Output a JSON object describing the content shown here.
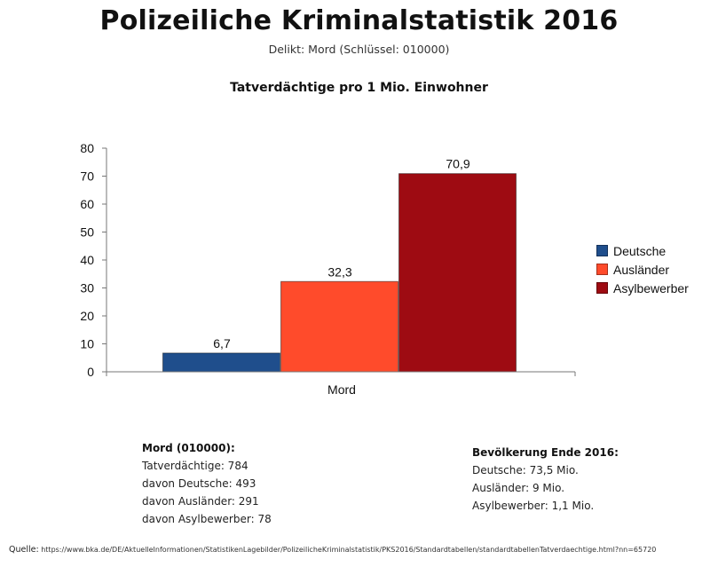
{
  "header": {
    "title": "Polizeiliche Kriminalstatistik 2016",
    "subtitle": "Delikt: Mord (Schlüssel: 010000)"
  },
  "chart_data": {
    "type": "bar",
    "title": "Tatverdächtige pro 1 Mio. Einwohner",
    "categories": [
      "Mord"
    ],
    "series": [
      {
        "name": "Deutsche",
        "values": [
          6.7
        ],
        "label": "6,7",
        "color": "#1f4e8c"
      },
      {
        "name": "Ausländer",
        "values": [
          32.3
        ],
        "label": "32,3",
        "color": "#ff4b2b"
      },
      {
        "name": "Asylbewerber",
        "values": [
          70.9
        ],
        "label": "70,9",
        "color": "#9e0b12"
      }
    ],
    "yticks": [
      "0",
      "10",
      "20",
      "30",
      "40",
      "50",
      "60",
      "70",
      "80"
    ],
    "ylim": [
      0,
      80
    ],
    "xlabel": "",
    "ylabel": "",
    "grid": false,
    "legend": "right"
  },
  "stats_left": {
    "heading": "Mord (010000):",
    "lines": [
      "Tatverdächtige: 784",
      "davon Deutsche: 493",
      "davon Ausländer: 291",
      "davon Asylbewerber: 78"
    ]
  },
  "stats_right": {
    "heading": "Bevölkerung Ende 2016:",
    "lines": [
      "Deutsche: 73,5 Mio.",
      "Ausländer: 9 Mio.",
      "Asylbewerber: 1,1 Mio."
    ]
  },
  "source": {
    "label": "Quelle:",
    "url": "https://www.bka.de/DE/AktuelleInformationen/StatistikenLagebilder/PolizeilicheKriminalstatistik/PKS2016/Standardtabellen/standardtabellenTatverdaechtige.html?nn=65720"
  }
}
